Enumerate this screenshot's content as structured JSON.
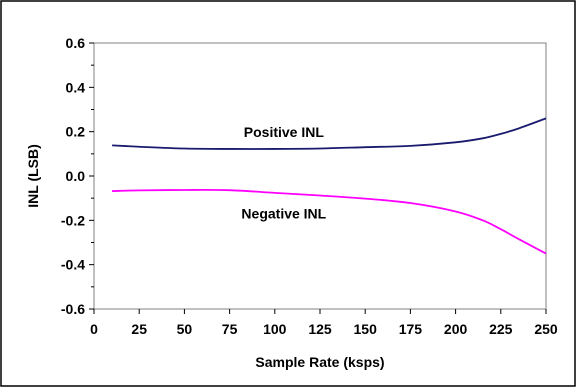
{
  "chart_data": {
    "type": "line",
    "title": "",
    "xlabel": "Sample Rate (ksps)",
    "ylabel": "INL (LSB)",
    "xlim": [
      0,
      250
    ],
    "ylim": [
      -0.6,
      0.6
    ],
    "x_ticks": [
      "0",
      "25",
      "50",
      "75",
      "100",
      "125",
      "150",
      "175",
      "200",
      "225",
      "250"
    ],
    "y_ticks": [
      "-0.6",
      "-0.4",
      "-0.2",
      "0.0",
      "0.2",
      "0.4",
      "0.6"
    ],
    "grid": false,
    "series": [
      {
        "name": "Positive INL",
        "color": "#1a1a6e",
        "x": [
          10,
          25,
          50,
          75,
          100,
          125,
          150,
          175,
          200,
          215,
          225,
          235,
          250
        ],
        "y": [
          0.138,
          0.132,
          0.124,
          0.122,
          0.122,
          0.124,
          0.13,
          0.136,
          0.152,
          0.17,
          0.19,
          0.215,
          0.26
        ]
      },
      {
        "name": "Negative INL",
        "color": "#ff00ff",
        "x": [
          10,
          25,
          50,
          75,
          100,
          125,
          150,
          175,
          200,
          215,
          225,
          235,
          250
        ],
        "y": [
          -0.068,
          -0.065,
          -0.063,
          -0.064,
          -0.076,
          -0.088,
          -0.102,
          -0.122,
          -0.16,
          -0.2,
          -0.24,
          -0.285,
          -0.35
        ]
      }
    ],
    "annotations": [
      {
        "text": "Positive INL",
        "series": 0
      },
      {
        "text": "Negative INL",
        "series": 1
      }
    ]
  }
}
